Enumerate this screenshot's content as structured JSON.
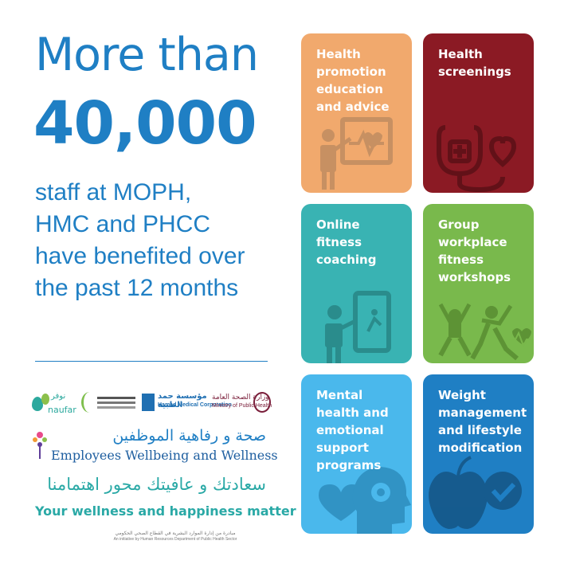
{
  "headline": {
    "line1": "More than",
    "number": "40,000",
    "body": [
      "staff at MOPH,",
      "HMC and PHCC",
      "have benefited over",
      "the past 12 months"
    ]
  },
  "logos": {
    "naufar_ar": "نوفر",
    "naufar_en": "naufar",
    "hmc_ar": "مؤسسة حمد الطبية",
    "hmc_en": "Hamad Medical Corporation",
    "moph_ar": "وزارة الصحة العامة",
    "moph_en": "Ministry of Public Health"
  },
  "program": {
    "title_ar": "صحة و رفاهية الموظفين",
    "title_en": "Employees Wellbeing and Wellness"
  },
  "tagline": {
    "ar": "سعادتك و عافيتك محور اهتمامنا",
    "en": "Your wellness and happiness matter"
  },
  "credit": {
    "ar": "مبادرة من إدارة الموارد البشرية في القطاع الصحي الحكومي",
    "en": "An initiative by Human Resources Department of Public Health Sector"
  },
  "cards": [
    {
      "label": "Health promotion education and advice",
      "color": "#f1a96d",
      "icon": "presentation-icon"
    },
    {
      "label": "Health screenings",
      "color": "#8b1a24",
      "icon": "stethoscope-icon"
    },
    {
      "label": "Online fitness coaching",
      "color": "#39b3b3",
      "icon": "tablet-coaching-icon"
    },
    {
      "label": "Group workplace fitness workshops",
      "color": "#79b94c",
      "icon": "group-exercise-icon"
    },
    {
      "label": "Mental health and emotional support programs",
      "color": "#4ab8ec",
      "icon": "head-heart-icon"
    },
    {
      "label": "Weight management and lifestyle modification",
      "color": "#1f7fc4",
      "icon": "apple-check-icon"
    }
  ]
}
